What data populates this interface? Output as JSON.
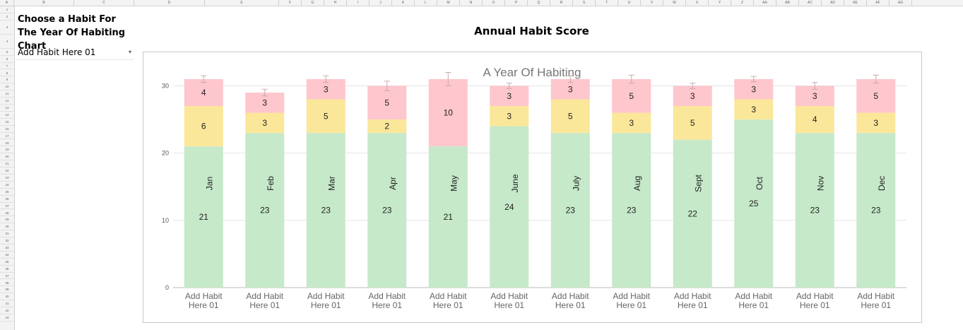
{
  "sheet": {
    "selector_label": "Choose a Habit For The Year Of Habiting Chart",
    "selector_value": "Add Habit Here 01",
    "chart_heading": "Annual Habit Score",
    "column_headers": [
      "A",
      "B",
      "C",
      "D",
      "E",
      "F",
      "G",
      "H",
      "I",
      "J",
      "K",
      "L",
      "M",
      "N",
      "O",
      "P",
      "Q",
      "R",
      "S",
      "T",
      "U",
      "V",
      "W",
      "X",
      "Y",
      "Z",
      "AA",
      "AB",
      "AC",
      "AD",
      "AE",
      "AF",
      "AG"
    ]
  },
  "colors": {
    "green": "#c6e9c9",
    "yellow": "#fbe79a",
    "pink": "#fec6cd",
    "grid": "#e4e4e4",
    "axis_text": "#555555",
    "error_bar": "#c9a9ad"
  },
  "chart_data": {
    "type": "bar",
    "stacked": true,
    "title": "A Year Of Habiting",
    "months": [
      "Jan",
      "Feb",
      "Mar",
      "Apr",
      "May",
      "June",
      "July",
      "Aug",
      "Sept",
      "Oct",
      "Nov",
      "Dec"
    ],
    "categories": [
      "Add Habit Here 01",
      "Add Habit Here 01",
      "Add Habit Here 01",
      "Add Habit Here 01",
      "Add Habit Here 01",
      "Add Habit Here 01",
      "Add Habit Here 01",
      "Add Habit Here 01",
      "Add Habit Here 01",
      "Add Habit Here 01",
      "Add Habit Here 01",
      "Add Habit Here 01"
    ],
    "series": [
      {
        "color": "green",
        "values": [
          21,
          23,
          23,
          23,
          21,
          24,
          23,
          23,
          22,
          25,
          23,
          23
        ]
      },
      {
        "color": "yellow",
        "values": [
          6,
          3,
          5,
          2,
          0,
          3,
          5,
          3,
          5,
          3,
          4,
          3
        ]
      },
      {
        "color": "pink",
        "values": [
          4,
          3,
          3,
          5,
          10,
          3,
          3,
          5,
          3,
          3,
          3,
          5
        ]
      }
    ],
    "ylim": [
      0,
      31
    ],
    "yticks": [
      0,
      10,
      20,
      30
    ],
    "grid": true,
    "error_bars": [
      0.5,
      0.5,
      0.5,
      0.7,
      1.0,
      0.4,
      0.5,
      0.6,
      0.4,
      0.4,
      0.5,
      0.6
    ],
    "legend": "none"
  }
}
